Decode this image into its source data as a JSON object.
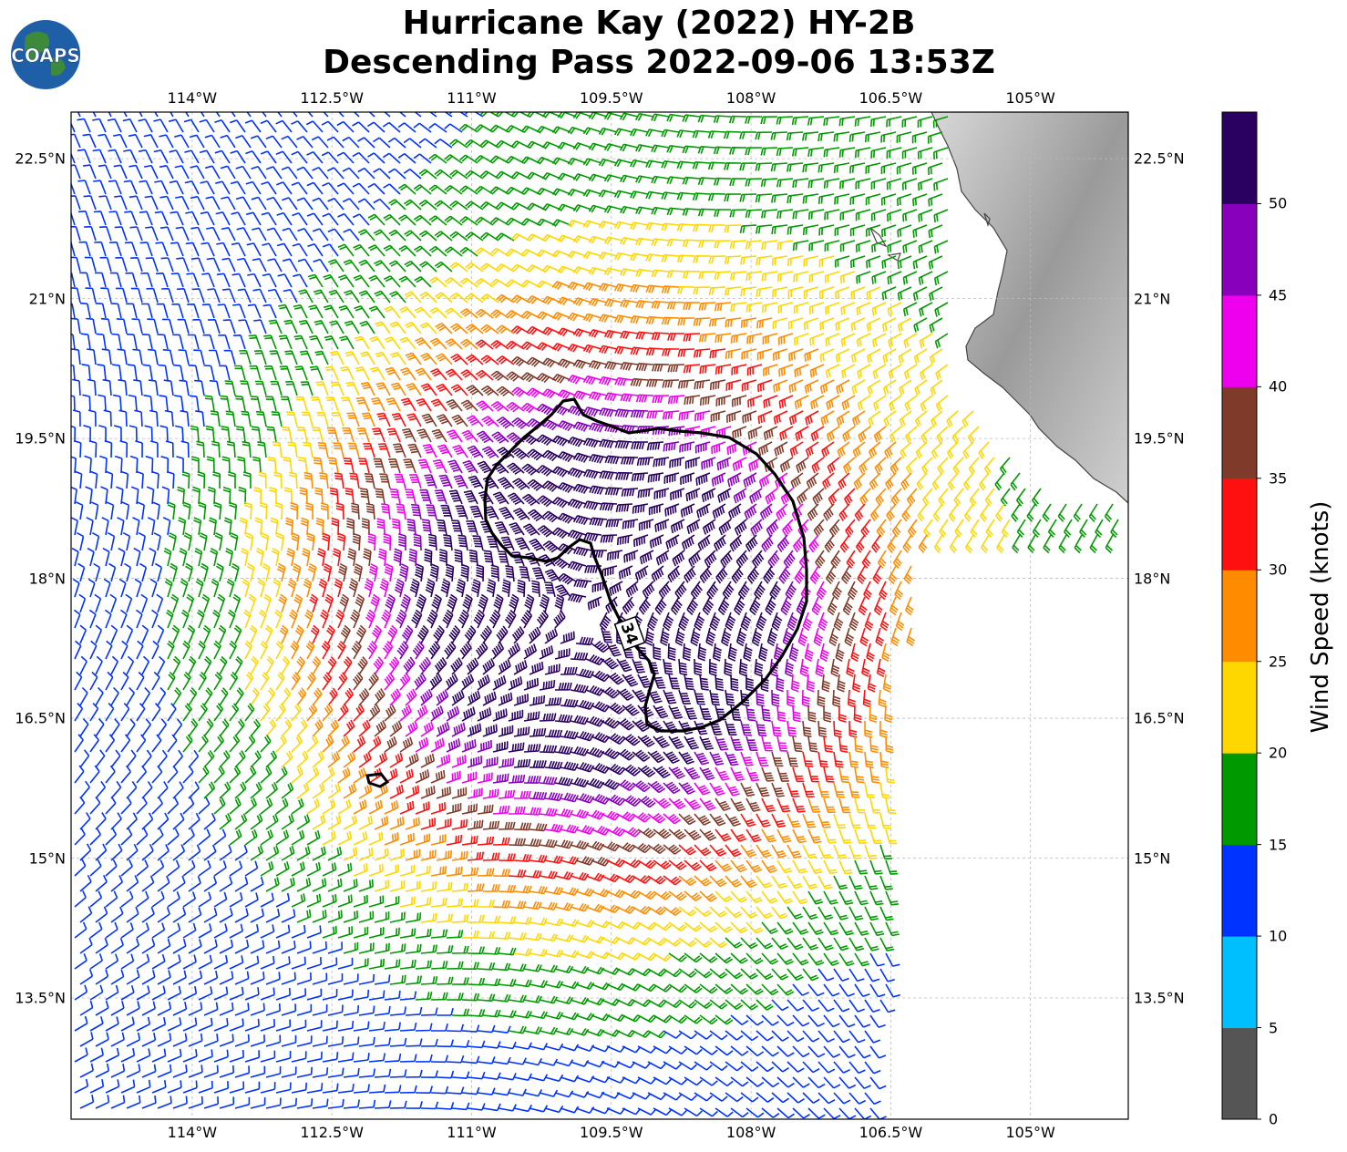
{
  "title_line1": "Hurricane Kay (2022) HY-2B",
  "title_line2": "Descending Pass 2022-09-06 13:53Z",
  "logo_text": "COAPS",
  "x_ticks": [
    "114°W",
    "112.5°W",
    "111°W",
    "109.5°W",
    "108°W",
    "106.5°W",
    "105°W"
  ],
  "y_ticks": [
    "22.5°N",
    "21°N",
    "19.5°N",
    "18°N",
    "16.5°N",
    "15°N",
    "13.5°N"
  ],
  "contour_label": "34",
  "colorbar": {
    "label": "Wind Speed (knots)",
    "ticks": [
      "0",
      "5",
      "10",
      "15",
      "20",
      "25",
      "30",
      "35",
      "40",
      "45",
      "50"
    ],
    "colors": [
      "#555555",
      "#00bfff",
      "#0033ff",
      "#009900",
      "#ffd700",
      "#ff8c00",
      "#ff1010",
      "#7f3a2a",
      "#ee00ee",
      "#8800bb",
      "#2a0060"
    ]
  },
  "map_extent": {
    "lon_min": -115.3,
    "lon_max": -103.95,
    "lat_min": 12.2,
    "lat_max": 23.0
  },
  "storm_center": {
    "lon": -109.8,
    "lat": 17.6
  }
}
